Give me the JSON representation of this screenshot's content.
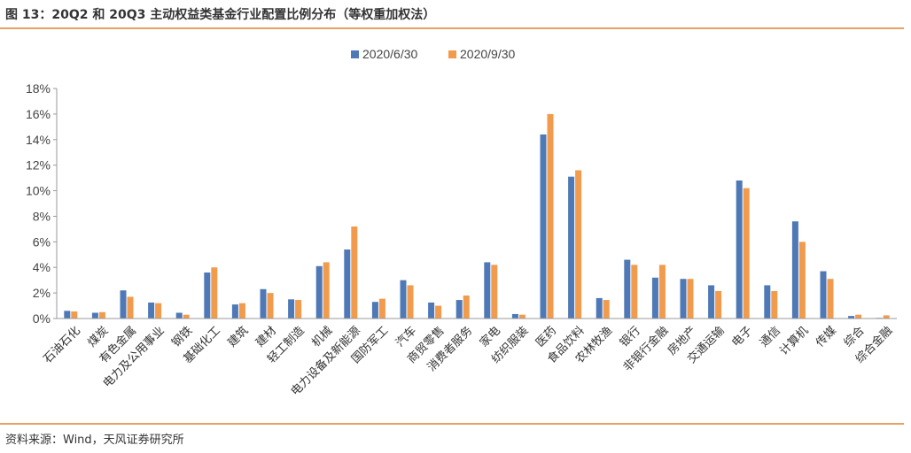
{
  "figure": {
    "title": "图 13：20Q2 和 20Q3 主动权益类基金行业配置比例分布（等权重加权法）",
    "source": "资料来源：Wind，天风证券研究所"
  },
  "colors": {
    "series1": "#4e79b6",
    "series2": "#f29b4c",
    "rule": "#e8a064"
  },
  "chart_data": {
    "type": "bar",
    "title": "",
    "xlabel": "",
    "ylabel": "",
    "ylim": [
      0,
      18
    ],
    "yticks": [
      "0%",
      "2%",
      "4%",
      "6%",
      "8%",
      "10%",
      "12%",
      "14%",
      "16%",
      "18%"
    ],
    "grid": false,
    "legend": "top-center",
    "categories": [
      "石油石化",
      "煤炭",
      "有色金属",
      "电力及公用事业",
      "钢铁",
      "基础化工",
      "建筑",
      "建材",
      "轻工制造",
      "机械",
      "电力设备及新能源",
      "国防军工",
      "汽车",
      "商贸零售",
      "消费者服务",
      "家电",
      "纺织服装",
      "医药",
      "食品饮料",
      "农林牧渔",
      "银行",
      "非银行金融",
      "房地产",
      "交通运输",
      "电子",
      "通信",
      "计算机",
      "传媒",
      "综合",
      "综合金融"
    ],
    "series": [
      {
        "name": "2020/6/30",
        "values": [
          0.6,
          0.45,
          2.2,
          1.25,
          0.45,
          3.6,
          1.1,
          2.3,
          1.5,
          4.1,
          5.4,
          1.3,
          3.0,
          1.25,
          1.45,
          4.4,
          0.35,
          14.4,
          11.1,
          1.6,
          4.6,
          3.2,
          3.1,
          2.6,
          10.8,
          2.6,
          7.6,
          3.7,
          0.2,
          0.05
        ]
      },
      {
        "name": "2020/9/30",
        "values": [
          0.55,
          0.5,
          1.7,
          1.2,
          0.3,
          4.0,
          1.2,
          2.0,
          1.45,
          4.4,
          7.2,
          1.55,
          2.6,
          1.0,
          1.8,
          4.2,
          0.3,
          16.0,
          11.6,
          1.45,
          4.2,
          4.2,
          3.1,
          2.15,
          10.2,
          2.15,
          6.0,
          3.1,
          0.3,
          0.25
        ]
      }
    ]
  }
}
